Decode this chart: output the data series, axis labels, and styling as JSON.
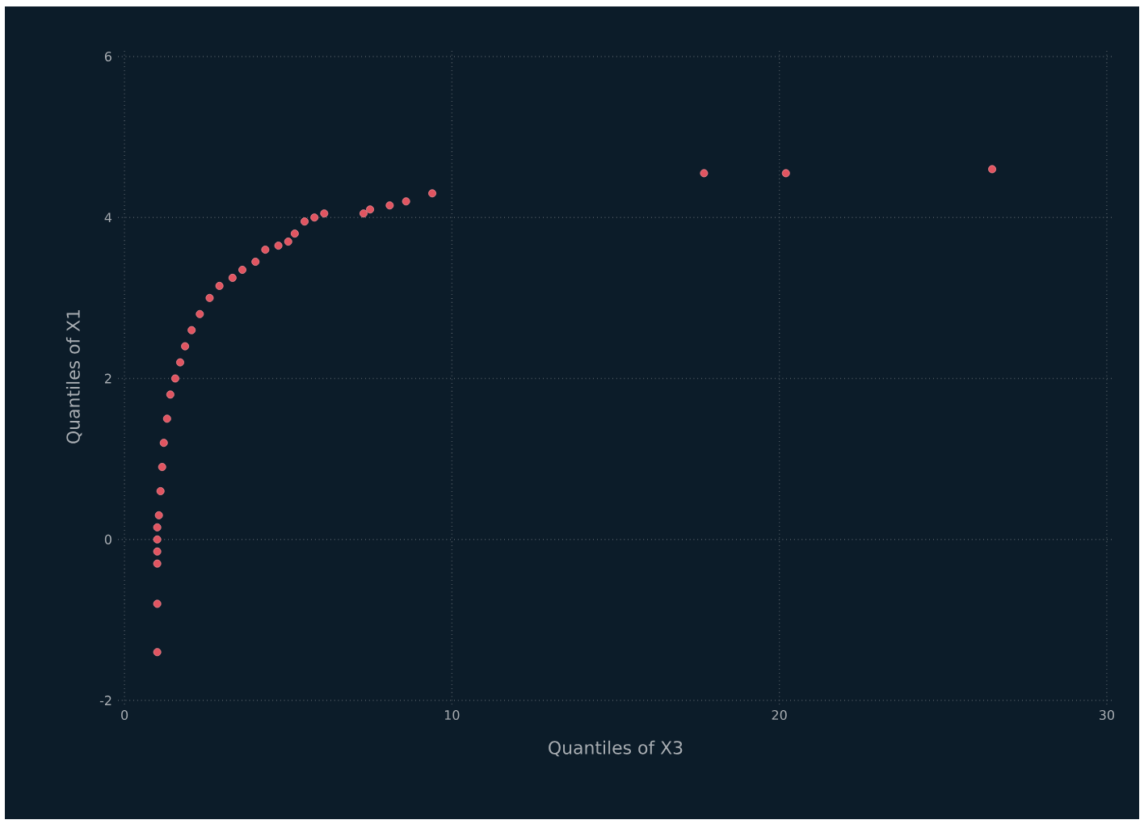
{
  "chart_data": {
    "type": "scatter",
    "xlabel": "Quantiles of X3",
    "ylabel": "Quantiles of X1",
    "xlim": [
      -0.2,
      30.2
    ],
    "ylim": [
      -2.05,
      6.1
    ],
    "xticks": [
      0,
      10,
      20,
      30
    ],
    "yticks": [
      -2,
      0,
      2,
      4,
      6
    ],
    "grid": true,
    "marker": "circle",
    "series": [
      {
        "color": "#e15561",
        "x": [
          1.0,
          1.0,
          1.0,
          1.0,
          1.0,
          1.0,
          1.05,
          1.1,
          1.15,
          1.2,
          1.3,
          1.4,
          1.55,
          1.7,
          1.85,
          2.05,
          2.3,
          2.6,
          2.9,
          3.3,
          3.6,
          4.0,
          4.3,
          4.7,
          5.0,
          5.2,
          5.5,
          5.8,
          6.1,
          7.3,
          7.5,
          8.1,
          8.6,
          9.4,
          17.7,
          20.2,
          26.5
        ],
        "values": [
          -1.4,
          -0.8,
          -0.3,
          -0.15,
          0.0,
          0.15,
          0.3,
          0.6,
          0.9,
          1.2,
          1.5,
          1.8,
          2.0,
          2.2,
          2.4,
          2.6,
          2.8,
          3.0,
          3.15,
          3.25,
          3.35,
          3.45,
          3.6,
          3.65,
          3.7,
          3.8,
          3.95,
          4.0,
          4.05,
          4.05,
          4.1,
          4.15,
          4.2,
          4.3,
          4.55,
          4.55,
          4.6
        ]
      }
    ]
  }
}
